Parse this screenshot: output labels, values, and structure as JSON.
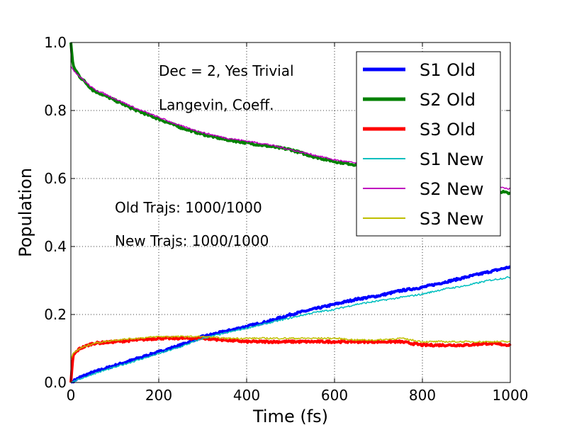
{
  "chart_data": {
    "type": "line",
    "title": "",
    "xlabel": "Time (fs)",
    "ylabel": "Population",
    "xlim": [
      0,
      1000
    ],
    "ylim": [
      0,
      1.0
    ],
    "xticks": [
      0,
      200,
      400,
      600,
      800,
      1000
    ],
    "yticks": [
      0.0,
      0.2,
      0.4,
      0.6,
      0.8,
      1.0
    ],
    "xtick_labels": [
      "0",
      "200",
      "400",
      "600",
      "800",
      "1000"
    ],
    "ytick_labels": [
      "0.0",
      "0.2",
      "0.4",
      "0.6",
      "0.8",
      "1.0"
    ],
    "grid": true,
    "legend_position": "top-right",
    "annotations": [
      "Dec = 2, Yes Trivial",
      "Langevin, Coeff.",
      "Old Trajs: 1000/1000",
      "New Trajs: 1000/1000"
    ],
    "series": [
      {
        "name": "S1 Old",
        "color": "#0000ff",
        "line": "thick",
        "x": [
          0,
          20,
          50,
          100,
          150,
          200,
          250,
          300,
          350,
          400,
          450,
          500,
          550,
          600,
          650,
          700,
          750,
          800,
          850,
          900,
          950,
          1000
        ],
        "y": [
          0.0,
          0.015,
          0.03,
          0.05,
          0.07,
          0.09,
          0.11,
          0.135,
          0.15,
          0.165,
          0.18,
          0.2,
          0.215,
          0.23,
          0.245,
          0.255,
          0.27,
          0.28,
          0.295,
          0.31,
          0.325,
          0.34
        ]
      },
      {
        "name": "S2 Old",
        "color": "#008000",
        "line": "thick",
        "x": [
          0,
          5,
          20,
          50,
          100,
          150,
          200,
          250,
          300,
          350,
          400,
          450,
          500,
          550,
          600,
          650,
          700,
          750,
          800,
          850,
          900,
          950,
          1000
        ],
        "y": [
          1.0,
          0.93,
          0.9,
          0.86,
          0.83,
          0.8,
          0.775,
          0.75,
          0.73,
          0.715,
          0.705,
          0.695,
          0.685,
          0.665,
          0.65,
          0.64,
          0.63,
          0.62,
          0.605,
          0.59,
          0.58,
          0.57,
          0.555
        ]
      },
      {
        "name": "S3 Old",
        "color": "#ff0000",
        "line": "thick",
        "x": [
          0,
          5,
          20,
          50,
          100,
          150,
          200,
          250,
          300,
          350,
          400,
          450,
          500,
          550,
          600,
          650,
          700,
          750,
          800,
          850,
          900,
          950,
          1000
        ],
        "y": [
          0.0,
          0.08,
          0.1,
          0.115,
          0.12,
          0.125,
          0.13,
          0.13,
          0.13,
          0.125,
          0.12,
          0.12,
          0.12,
          0.12,
          0.12,
          0.12,
          0.12,
          0.12,
          0.11,
          0.11,
          0.11,
          0.115,
          0.11
        ]
      },
      {
        "name": "S1 New",
        "color": "#00bfbf",
        "line": "thin",
        "x": [
          0,
          20,
          50,
          100,
          150,
          200,
          250,
          300,
          350,
          400,
          450,
          500,
          550,
          600,
          650,
          700,
          750,
          800,
          850,
          900,
          950,
          1000
        ],
        "y": [
          0.0,
          0.01,
          0.025,
          0.045,
          0.065,
          0.085,
          0.105,
          0.13,
          0.145,
          0.16,
          0.175,
          0.19,
          0.205,
          0.215,
          0.23,
          0.24,
          0.25,
          0.26,
          0.275,
          0.285,
          0.3,
          0.31
        ]
      },
      {
        "name": "S2 New",
        "color": "#bf00bf",
        "line": "thin",
        "x": [
          0,
          5,
          20,
          50,
          100,
          150,
          200,
          250,
          300,
          350,
          400,
          450,
          500,
          550,
          600,
          650,
          700,
          750,
          800,
          850,
          900,
          950,
          1000
        ],
        "y": [
          0.93,
          0.92,
          0.9,
          0.865,
          0.835,
          0.805,
          0.78,
          0.755,
          0.735,
          0.72,
          0.71,
          0.7,
          0.685,
          0.67,
          0.655,
          0.645,
          0.635,
          0.625,
          0.61,
          0.6,
          0.59,
          0.58,
          0.57
        ]
      },
      {
        "name": "S3 New",
        "color": "#bfbf00",
        "line": "thin",
        "x": [
          0,
          5,
          20,
          50,
          100,
          150,
          200,
          250,
          300,
          350,
          400,
          450,
          500,
          550,
          600,
          650,
          700,
          750,
          800,
          850,
          900,
          950,
          1000
        ],
        "y": [
          0.07,
          0.085,
          0.1,
          0.115,
          0.125,
          0.13,
          0.135,
          0.135,
          0.135,
          0.13,
          0.13,
          0.13,
          0.13,
          0.13,
          0.13,
          0.125,
          0.125,
          0.13,
          0.12,
          0.12,
          0.12,
          0.12,
          0.12
        ]
      }
    ]
  }
}
